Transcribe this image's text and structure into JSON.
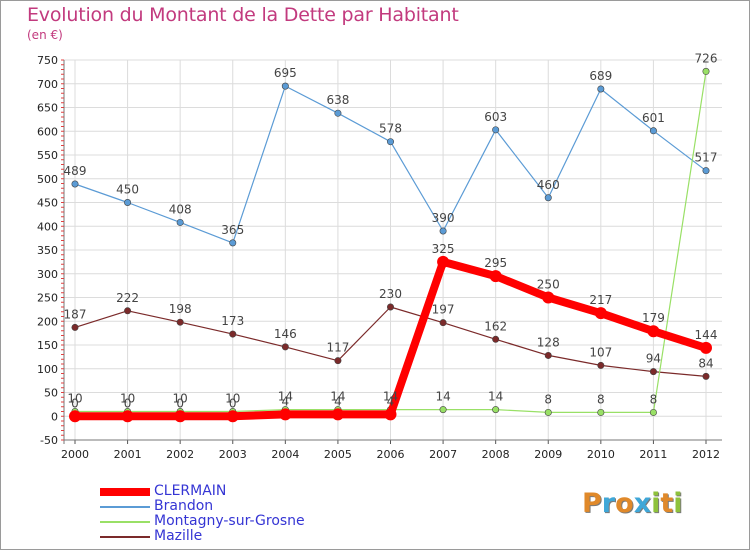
{
  "title": "Evolution du Montant de la Dette par Habitant",
  "subtitle": "(en €)",
  "logo_letters": [
    {
      "ch": "P",
      "color": "#e0892a"
    },
    {
      "ch": "r",
      "color": "#3fa7d8"
    },
    {
      "ch": "o",
      "color": "#e0892a"
    },
    {
      "ch": "x",
      "color": "#3fa7d8"
    },
    {
      "ch": "i",
      "color": "#8fc23b"
    },
    {
      "ch": "t",
      "color": "#e0892a"
    },
    {
      "ch": "i",
      "color": "#8fc23b"
    }
  ],
  "chart_data": {
    "type": "line",
    "title": "Evolution du Montant de la Dette par Habitant",
    "subtitle": "(en €)",
    "x": [
      "2000",
      "2001",
      "2002",
      "2003",
      "2004",
      "2005",
      "2006",
      "2007",
      "2008",
      "2009",
      "2010",
      "2011",
      "2012"
    ],
    "ylim": [
      -50,
      750
    ],
    "yticks": [
      -50,
      0,
      50,
      100,
      150,
      200,
      250,
      300,
      350,
      400,
      450,
      500,
      550,
      600,
      650,
      700,
      750
    ],
    "grid": true,
    "legend_position": "bottom-left",
    "series": [
      {
        "name": "CLERMAIN",
        "color": "#ff0000",
        "thick": true,
        "values": [
          0,
          0,
          0,
          0,
          4,
          4,
          4,
          325,
          295,
          250,
          217,
          179,
          144
        ],
        "labels": [
          "0",
          "0",
          "0",
          "0",
          "4",
          "4",
          "4",
          "325",
          "295",
          "250",
          "217",
          "179",
          "144"
        ]
      },
      {
        "name": "Brandon",
        "color": "#5b9bd5",
        "thick": false,
        "values": [
          489,
          450,
          408,
          365,
          695,
          638,
          578,
          390,
          603,
          460,
          689,
          601,
          517
        ],
        "labels": [
          "489",
          "450",
          "408",
          "365",
          "695",
          "638",
          "578",
          "390",
          "603",
          "460",
          "689",
          "601",
          "517"
        ]
      },
      {
        "name": "Montagny-sur-Grosne",
        "color": "#99e066",
        "thick": false,
        "values": [
          10,
          10,
          10,
          10,
          14,
          14,
          14,
          14,
          14,
          8,
          8,
          8,
          726
        ],
        "labels": [
          "10",
          "10",
          "10",
          "10",
          "14",
          "14",
          "14",
          "14",
          "14",
          "8",
          "8",
          "8",
          "726"
        ]
      },
      {
        "name": "Mazille",
        "color": "#7b2a2a",
        "thick": false,
        "values": [
          187,
          222,
          198,
          173,
          146,
          117,
          230,
          197,
          162,
          128,
          107,
          94,
          84
        ],
        "labels": [
          "187",
          "222",
          "198",
          "173",
          "146",
          "117",
          "230",
          "197",
          "162",
          "128",
          "107",
          "94",
          "84"
        ]
      }
    ]
  }
}
